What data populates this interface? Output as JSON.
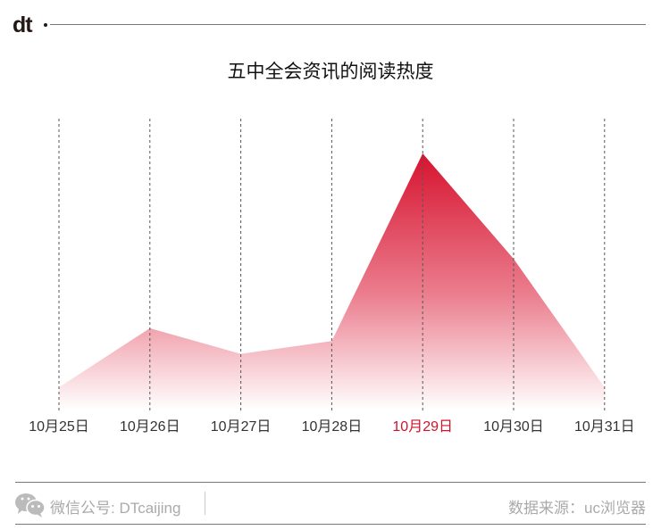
{
  "header": {
    "logo_text": "dt"
  },
  "footer": {
    "wechat_label": "微信公号: DTcaijing",
    "source_label": "数据来源：uc浏览器",
    "icon": "wechat-icon"
  },
  "chart_data": {
    "type": "area",
    "title": "五中全会资讯的阅读热度",
    "categories": [
      "10月25日",
      "10月26日",
      "10月27日",
      "10月28日",
      "10月29日",
      "10月30日",
      "10月31日"
    ],
    "values": [
      9,
      32,
      22,
      27,
      100,
      59,
      9
    ],
    "highlight_category": "10月29日",
    "ylim": [
      0,
      100
    ],
    "y_axis_shown": false,
    "grid": "vertical dashed lines at each category",
    "colors": {
      "area_top": "#d6132f",
      "area_bottom": "#ffffff",
      "highlight_label": "#d0122b",
      "label": "#333333"
    }
  }
}
